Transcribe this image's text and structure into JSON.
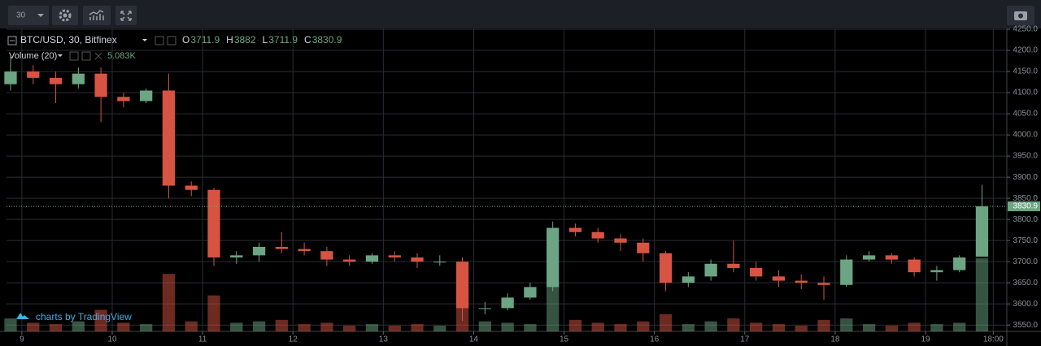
{
  "toolbar": {
    "interval": "30"
  },
  "chart_data": {
    "type": "candlestick",
    "title": "BTC/USD, 30, Bitfinex",
    "ohlc_labels": [
      "O",
      "H",
      "L",
      "C"
    ],
    "x": [
      8.875,
      9.125,
      9.375,
      9.625,
      9.875,
      10.125,
      10.375,
      10.625,
      10.875,
      11.125,
      11.375,
      11.625,
      11.875,
      12.125,
      12.375,
      12.625,
      12.875,
      13.125,
      13.375,
      13.625,
      13.875,
      14.125,
      14.375,
      14.625,
      14.875,
      15.125,
      15.375,
      15.625,
      15.875,
      16.125,
      16.375,
      16.625,
      16.875,
      17.125,
      17.375,
      17.625,
      17.875,
      18.125,
      18.375,
      18.625,
      18.875,
      19.125,
      19.375,
      19.625
    ],
    "open": [
      4120,
      4150,
      4135,
      4120,
      4145,
      4090,
      4080,
      4105,
      3880,
      3870,
      3710,
      3715,
      3735,
      3730,
      3725,
      3705,
      3700,
      3715,
      3710,
      3700,
      3700,
      3590,
      3590,
      3615,
      3640,
      3780,
      3770,
      3755,
      3745,
      3720,
      3650,
      3665,
      3695,
      3685,
      3665,
      3655,
      3650,
      3645,
      3705,
      3715,
      3705,
      3675,
      3680,
      3711.9
    ],
    "high": [
      4185,
      4165,
      4150,
      4160,
      4160,
      4100,
      4110,
      4145,
      3890,
      3875,
      3725,
      3745,
      3770,
      3745,
      3735,
      3715,
      3720,
      3725,
      3720,
      3715,
      3710,
      3605,
      3625,
      3650,
      3795,
      3790,
      3780,
      3765,
      3755,
      3725,
      3675,
      3705,
      3750,
      3700,
      3680,
      3670,
      3665,
      3715,
      3725,
      3720,
      3710,
      3690,
      3715,
      3882.0
    ],
    "low": [
      4105,
      4120,
      4075,
      4110,
      4030,
      4065,
      4075,
      3850,
      3855,
      3690,
      3695,
      3700,
      3720,
      3715,
      3690,
      3690,
      3695,
      3700,
      3685,
      3690,
      3560,
      3575,
      3585,
      3610,
      3630,
      3760,
      3745,
      3725,
      3700,
      3630,
      3640,
      3655,
      3675,
      3655,
      3640,
      3635,
      3610,
      3640,
      3700,
      3695,
      3665,
      3655,
      3675,
      3711.9
    ],
    "close": [
      4150,
      4135,
      4120,
      4145,
      4090,
      4080,
      4105,
      3880,
      3870,
      3710,
      3715,
      3735,
      3730,
      3725,
      3705,
      3700,
      3715,
      3710,
      3700,
      3700,
      3590,
      3590,
      3615,
      3640,
      3780,
      3770,
      3755,
      3745,
      3720,
      3650,
      3665,
      3695,
      3685,
      3665,
      3655,
      3650,
      3645,
      3705,
      3715,
      3705,
      3675,
      3680,
      3710,
      3830.9
    ],
    "up_color": "#6ba583",
    "down_color": "#d75442",
    "volume": {
      "name": "Volume (20)",
      "values": [
        900,
        600,
        500,
        700,
        1500,
        600,
        500,
        4000,
        700,
        2500,
        600,
        700,
        800,
        500,
        600,
        400,
        500,
        400,
        500,
        400,
        2600,
        700,
        600,
        500,
        3200,
        800,
        600,
        500,
        700,
        1200,
        500,
        700,
        900,
        600,
        500,
        400,
        800,
        900,
        500,
        400,
        600,
        500,
        600,
        5083
      ],
      "last_label": "5.083K"
    },
    "xlim": [
      8.83,
      19.9
    ],
    "xticks": [
      9,
      10,
      11,
      12,
      13,
      14,
      15,
      16,
      17,
      18,
      19,
      {
        "value": 19.75,
        "label": "18:00"
      }
    ],
    "ylim": [
      3535,
      4252
    ],
    "yticks": [
      {
        "value": 3550,
        "label": "3550.0"
      },
      {
        "value": 3600,
        "label": "3600.0"
      },
      {
        "value": 3650,
        "label": "3650.0"
      },
      {
        "value": 3700,
        "label": "3700.0"
      },
      {
        "value": 3750,
        "label": "3750.0"
      },
      {
        "value": 3800,
        "label": "3800.0"
      },
      {
        "value": 3850,
        "label": "3850.0"
      },
      {
        "value": 3900,
        "label": "3900.0"
      },
      {
        "value": 3950,
        "label": "3950.0"
      },
      {
        "value": 4000,
        "label": "4000.0"
      },
      {
        "value": 4050,
        "label": "4050.0"
      },
      {
        "value": 4100,
        "label": "4100.0"
      },
      {
        "value": 4150,
        "label": "4150.0"
      },
      {
        "value": 4200,
        "label": "4200.0"
      },
      {
        "value": 4250,
        "label": "4250.0"
      }
    ],
    "grid": true
  },
  "watermark": "charts by TradingView"
}
